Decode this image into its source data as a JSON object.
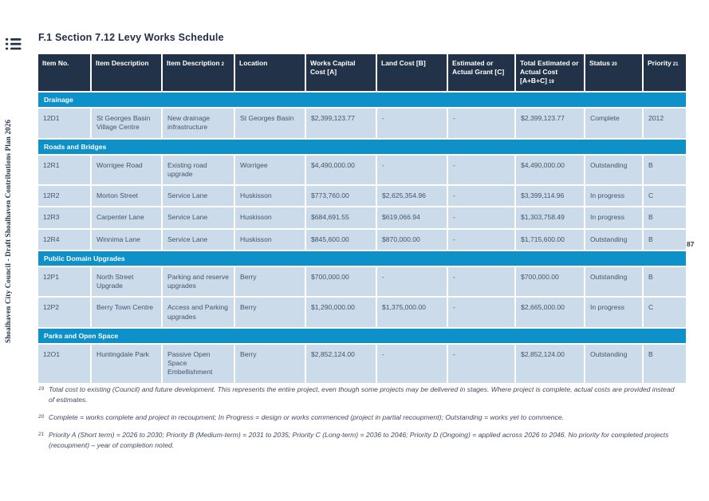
{
  "title": "F.1 Section 7.12 Levy Works Schedule",
  "sidebar_text": "Shoalhaven City Council - Draft Shoalhaven Contributions Plan 2026",
  "page": {
    "number": "87"
  },
  "icons": {
    "list_icon": "list-icon"
  },
  "colors": {
    "header_bg": "#223349",
    "section_bg": "#0e90c8",
    "row_bg": "#cbdbe9",
    "title_color": "#222d47",
    "cell_text": "#44566c",
    "footnote_color": "#3e4a61"
  },
  "table": {
    "columns": [
      {
        "label": "Item No.",
        "sup": ""
      },
      {
        "label": "Item Description",
        "sup": ""
      },
      {
        "label": "Item Description",
        "sup": "2"
      },
      {
        "label": "Location",
        "sup": ""
      },
      {
        "label": "Works Capital Cost [A]",
        "sup": ""
      },
      {
        "label": "Land Cost [B]",
        "sup": ""
      },
      {
        "label": "Estimated or Actual Grant [C]",
        "sup": ""
      },
      {
        "label": "Total Estimated or Actual Cost [A+B+C]",
        "sup": "19"
      },
      {
        "label": "Status",
        "sup": "20"
      },
      {
        "label": "Priority",
        "sup": "21"
      }
    ],
    "sections": [
      {
        "name": "Drainage",
        "rows": [
          [
            "12D1",
            "St Georges Basin Village Centre",
            "New drainage infrastructure",
            "St Georges Basin",
            "$2,399,123.77",
            "-",
            "-",
            "$2,399,123.77",
            "Complete",
            "2012"
          ]
        ]
      },
      {
        "name": "Roads and Bridges",
        "rows": [
          [
            "12R1",
            "Worrigee Road",
            "Existing road upgrade",
            "Worrigee",
            "$4,490,000.00",
            "-",
            "-",
            "$4,490,000.00",
            "Outstanding",
            "B"
          ],
          [
            "12R2",
            "Morton Street",
            "Service Lane",
            "Huskisson",
            "$773,760.00",
            "$2,625,354.96",
            "-",
            "$3,399,114.96",
            "In progress",
            "C"
          ],
          [
            "12R3",
            "Carpenter Lane",
            "Service Lane",
            "Huskisson",
            "$684,691.55",
            "$619,066.94",
            "-",
            "$1,303,758.49",
            "In progress",
            "B"
          ],
          [
            "12R4",
            "Winnima Lane",
            "Service Lane",
            "Huskisson",
            "$845,600.00",
            "$870,000.00",
            "-",
            "$1,715,600.00",
            "Outstanding",
            "B"
          ]
        ]
      },
      {
        "name": "Public Domain Upgrades",
        "rows": [
          [
            "12P1",
            "North Street Upgrade",
            "Parking and reserve upgrades",
            "Berry",
            "$700,000.00",
            "-",
            "-",
            "$700,000.00",
            "Outstanding",
            "B"
          ],
          [
            "12P2",
            "Berry Town Centre",
            "Access and Parking upgrades",
            "Berry",
            "$1,290,000.00",
            "$1,375,000.00",
            "-",
            "$2,665,000.00",
            "In progress",
            "C"
          ]
        ]
      },
      {
        "name": "Parks and Open Space",
        "rows": [
          [
            "12O1",
            "Huntingdale Park",
            "Passive Open Space Embellishment",
            "Berry",
            "$2,852,124.00",
            "-",
            "-",
            "$2,852,124.00",
            "Outstanding",
            "B"
          ]
        ]
      }
    ]
  },
  "footnotes": [
    {
      "num": "19",
      "text": "Total cost to existing (Council) and future development. This represents the entire project, even though some projects may be delivered in stages. Where project is complete, actual costs are provided instead of estimates."
    },
    {
      "num": "20",
      "text": "Complete = works complete and project in recoupment; In Progress = design or works commenced (project in partial recoupment); Outstanding = works yet to commence."
    },
    {
      "num": "21",
      "text": "Priority A (Short term) = 2026 to 2030; Priority B (Medium-term) = 2031 to 2035; Priority C (Long-term) = 2036 to 2046; Priority D (Ongoing) = applied across 2026 to 2046. No priority for completed projects (recoupment) – year of completion noted."
    }
  ]
}
